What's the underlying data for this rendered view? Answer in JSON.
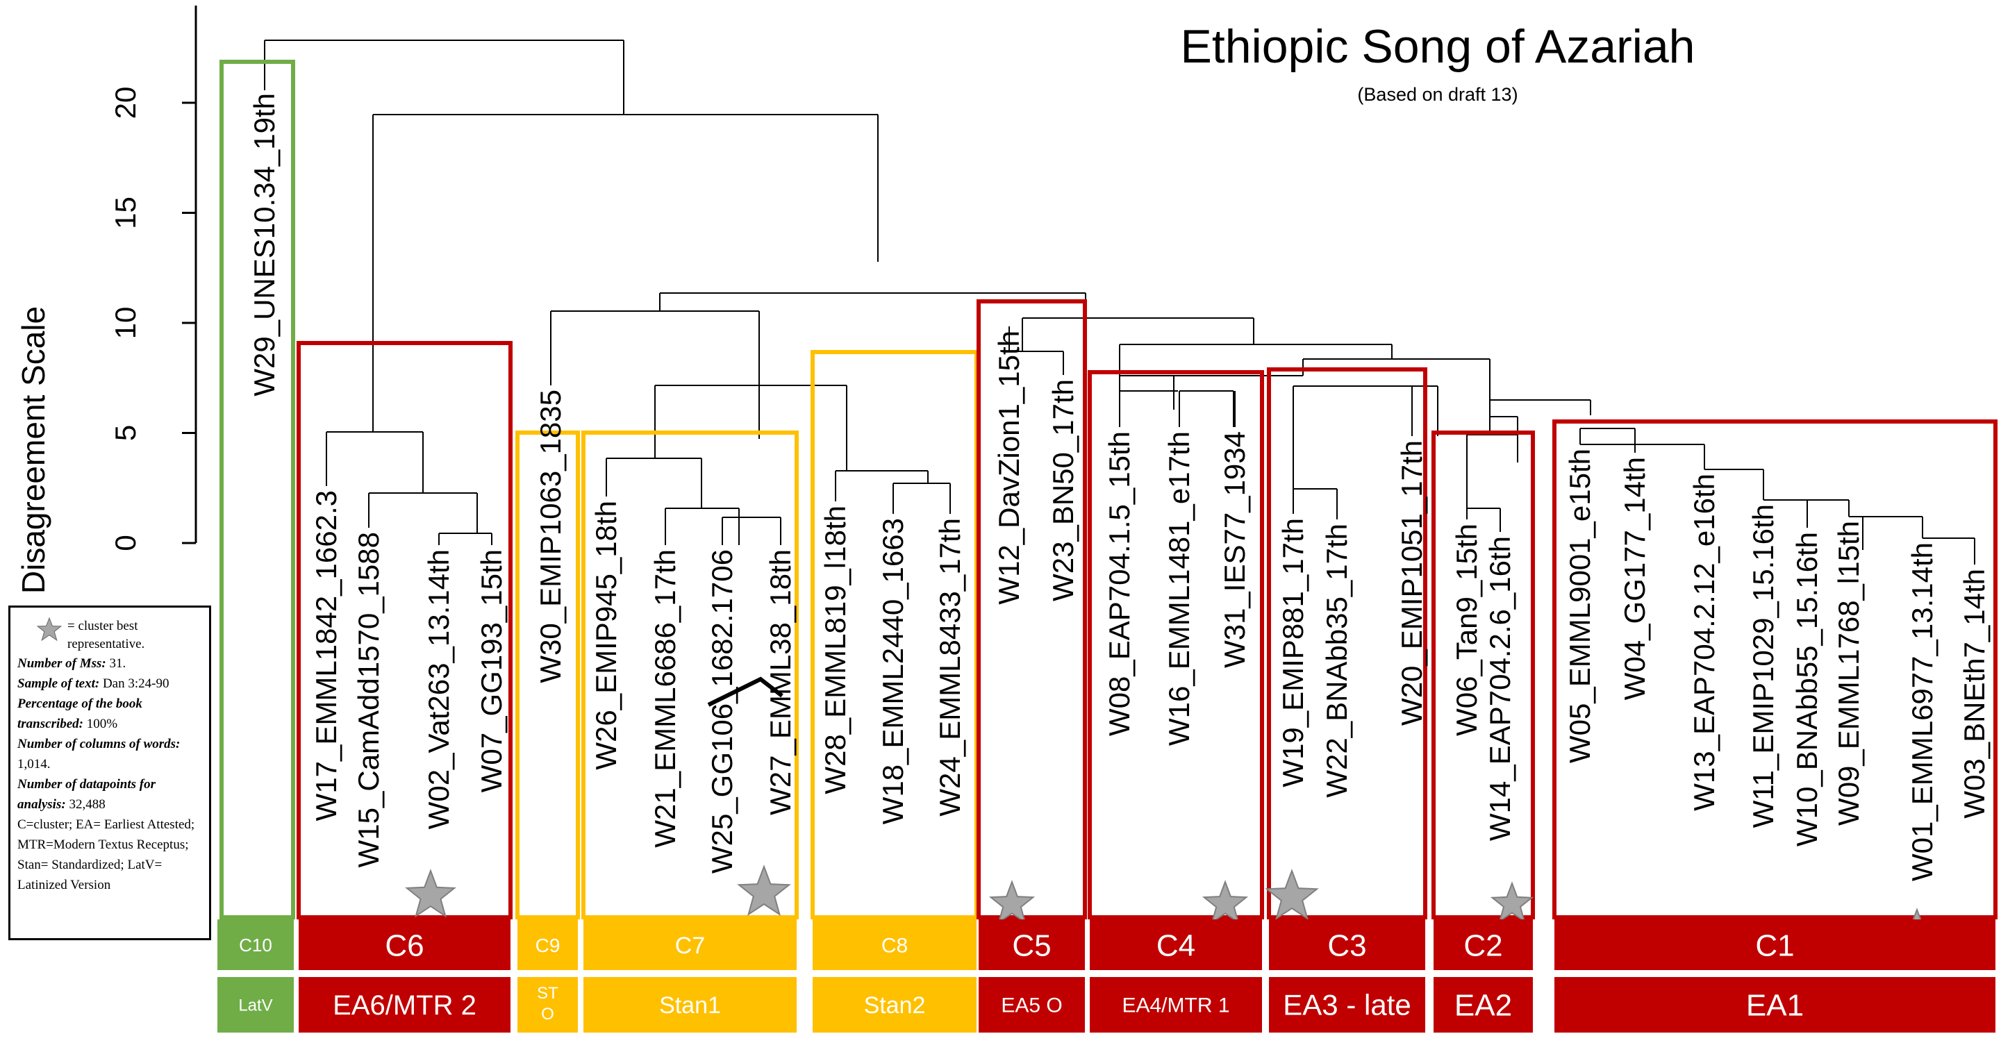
{
  "title": "Ethiopic Song of Azariah",
  "subtitle": "(Based on draft 13)",
  "y_axis": {
    "label": "Disagreement Scale",
    "ticks": [
      0,
      5,
      10,
      15,
      20
    ]
  },
  "leaves": [
    "W29_UNES10.34_19th",
    "W17_EMML1842_1662.3",
    "W15_CamAdd1570_1588",
    "W02_Vat263_13.14th",
    "W07_GG193_15th",
    "W30_EMIP1063_1835",
    "W26_EMIP945_18th",
    "W21_EMML6686_17th",
    "W25_GG106_1682.1706",
    "W27_EMML38_18th",
    "W28_EMML819_l18th",
    "W18_EMML2440_1663",
    "W24_EMML8433_17th",
    "W12_DavZion1_15th",
    "W23_BN50_17th",
    "W08_EAP704.1.5_15th",
    "W16_EMML1481_e17th",
    "W31_IES77_1934",
    "W19_EMIP881_17th",
    "W22_BNAbb35_17th",
    "W20_EMIP1051_17th",
    "W06_Tan9_15th",
    "W14_EAP704.2.6_16th",
    "W05_EMML9001_e15th",
    "W04_GG177_14th",
    "W13_EAP704.2.12_e16th",
    "W11_EMIP1029_15.16th",
    "W10_BNAbb55_15.16th",
    "W09_EMML1768_l15th",
    "W01_EMML6977_13.14th",
    "W03_BNEth7_14th"
  ],
  "clusters": [
    {
      "id": "C10",
      "group": "LatV",
      "color": "#70AD47"
    },
    {
      "id": "C6",
      "group": "EA6/MTR 2",
      "color": "#C00000"
    },
    {
      "id": "C9",
      "group": "ST O",
      "color": "#FFC000"
    },
    {
      "id": "C7",
      "group": "Stan1",
      "color": "#FFC000"
    },
    {
      "id": "C8",
      "group": "Stan2",
      "color": "#FFC000"
    },
    {
      "id": "C5",
      "group": "EA5 O",
      "color": "#C00000"
    },
    {
      "id": "C4",
      "group": "EA4/MTR 1",
      "color": "#C00000"
    },
    {
      "id": "C3",
      "group": "EA3 - late",
      "color": "#C00000"
    },
    {
      "id": "C2",
      "group": "EA2",
      "color": "#C00000"
    },
    {
      "id": "C1",
      "group": "EA1",
      "color": "#C00000"
    }
  ],
  "best_representatives": [
    "W02_Vat263_13.14th",
    "W27_EMML38_18th",
    "W12_DavZion1_15th",
    "W31_IES77_1934",
    "W19_EMIP881_17th",
    "W14_EAP704.2.6_16th",
    "W01_EMML6977_13.14th"
  ],
  "legend": {
    "star_text": "= cluster best representative.",
    "mss_label": "Number of Mss:",
    "mss_value": "31.",
    "sample_label": "Sample of text:",
    "sample_value": "Dan 3:24-90",
    "percentage_label": "Percentage of the book transcribed:",
    "percentage_value": "100%",
    "columns_label": "Number of columns of words:",
    "columns_value": "1,014.",
    "datapoints_label": "Number of datapoints for analysis:",
    "datapoints_value": "32,488",
    "abbreviations": "C=cluster; EA= Earliest Attested; MTR=Modern Textus Receptus; Stan= Standardized; LatV= Latinized Version"
  },
  "colors": {
    "red": "#C00000",
    "gold": "#FFC000",
    "green": "#70AD47",
    "star": "#A6A6A6"
  }
}
